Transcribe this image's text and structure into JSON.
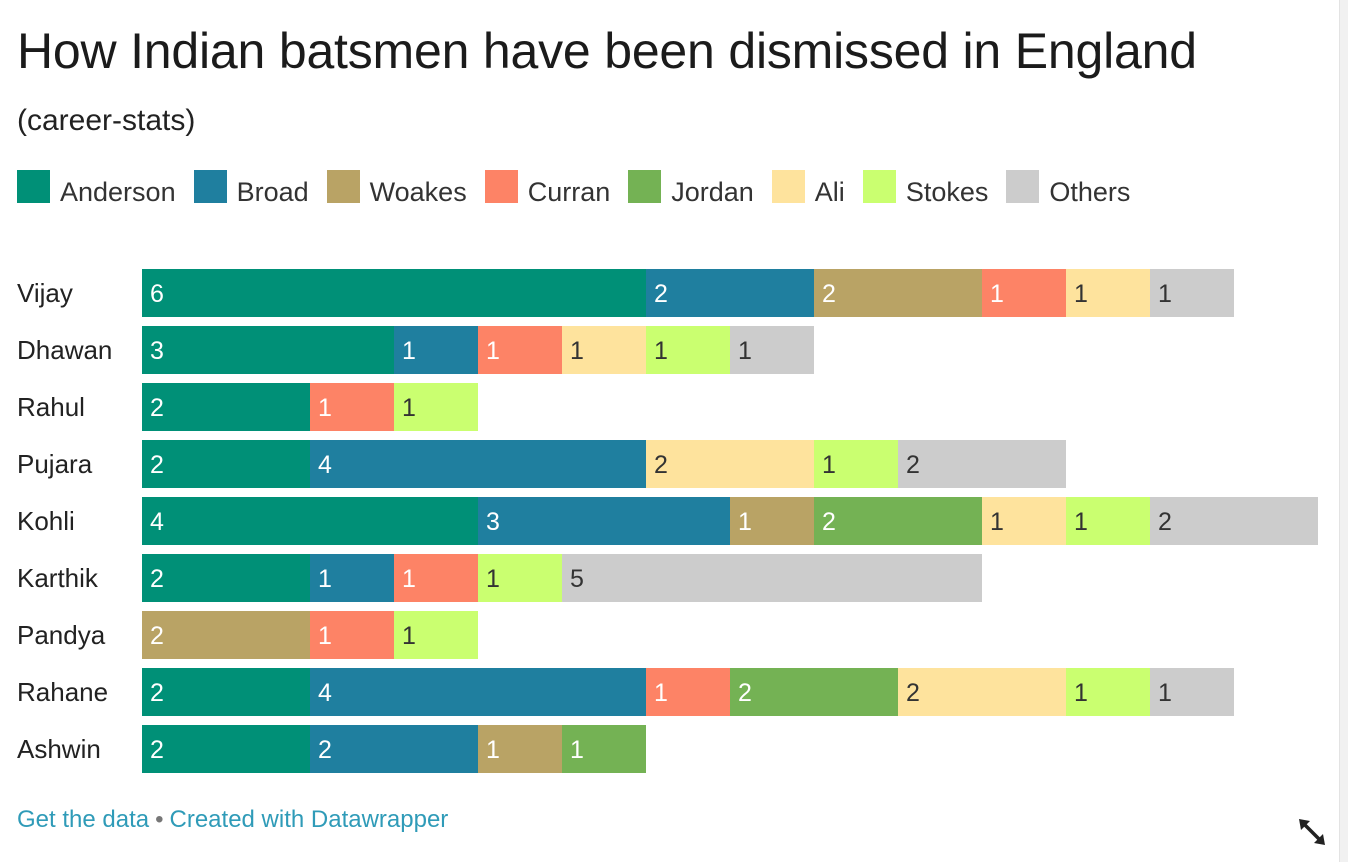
{
  "title": "How Indian batsmen have been dismissed in England",
  "subtitle": "(career-stats)",
  "footer": {
    "get_data": "Get the data",
    "separator": "•",
    "created_with": "Created with Datawrapper"
  },
  "icons": {
    "resize": "resize-diagonal-icon"
  },
  "chart_data": {
    "type": "bar",
    "orientation": "horizontal",
    "stacked": true,
    "title": "How Indian batsmen have been dismissed in England",
    "subtitle": "(career-stats)",
    "legend_position": "top-left",
    "categories": [
      "Vijay",
      "Dhawan",
      "Rahul",
      "Pujara",
      "Kohli",
      "Karthik",
      "Pandya",
      "Rahane",
      "Ashwin"
    ],
    "series": [
      {
        "name": "Anderson",
        "color": "#009077",
        "label_color": "#ffffff",
        "values": [
          6,
          3,
          2,
          2,
          4,
          2,
          0,
          2,
          2
        ]
      },
      {
        "name": "Broad",
        "color": "#1f7f9f",
        "label_color": "#ffffff",
        "values": [
          2,
          1,
          0,
          4,
          3,
          1,
          0,
          4,
          2
        ]
      },
      {
        "name": "Woakes",
        "color": "#b9a365",
        "label_color": "#ffffff",
        "values": [
          2,
          0,
          0,
          0,
          1,
          0,
          2,
          0,
          1
        ]
      },
      {
        "name": "Curran",
        "color": "#fd8366",
        "label_color": "#ffffff",
        "values": [
          1,
          1,
          1,
          0,
          0,
          1,
          1,
          1,
          0
        ]
      },
      {
        "name": "Jordan",
        "color": "#74b254",
        "label_color": "#ffffff",
        "values": [
          0,
          0,
          0,
          0,
          2,
          0,
          0,
          2,
          1
        ]
      },
      {
        "name": "Ali",
        "color": "#fee39d",
        "label_color": "#333333",
        "values": [
          1,
          1,
          0,
          2,
          1,
          0,
          0,
          2,
          0
        ]
      },
      {
        "name": "Stokes",
        "color": "#caff70",
        "label_color": "#333333",
        "values": [
          0,
          1,
          1,
          1,
          1,
          1,
          1,
          1,
          0
        ]
      },
      {
        "name": "Others",
        "color": "#cccccc",
        "label_color": "#333333",
        "values": [
          1,
          1,
          0,
          2,
          2,
          5,
          0,
          1,
          0
        ]
      }
    ],
    "show_value_labels": true,
    "xlim": [
      0,
      14
    ]
  }
}
